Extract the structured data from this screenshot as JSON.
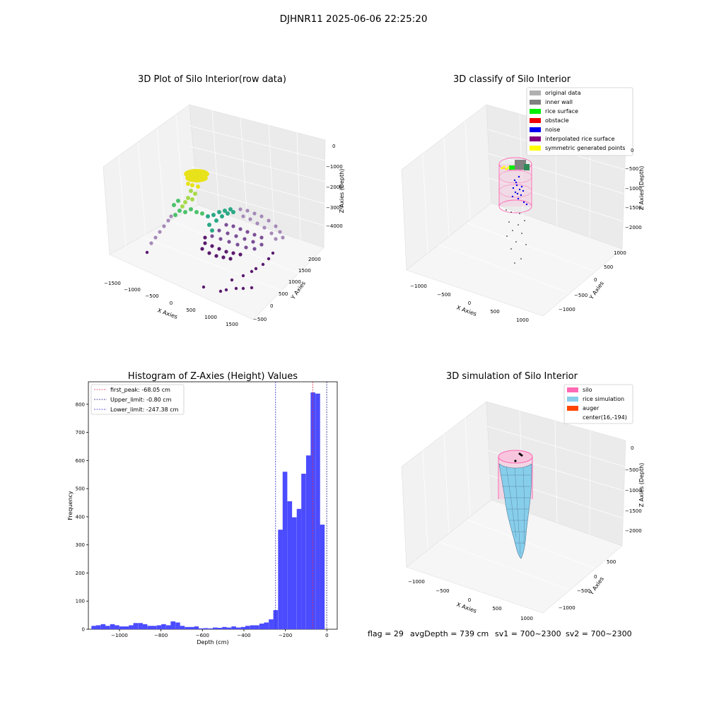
{
  "figure": {
    "suptitle": "DJHNR11 2025-06-06 22:25:20",
    "footer": {
      "flag": "flag = 29",
      "avg_depth": "avgDepth = 739 cm",
      "sv1": "sv1 = 700~2300",
      "sv2": "sv2 = 700~2300"
    }
  },
  "chart_data": [
    {
      "type": "scatter",
      "projection": "3d",
      "title": "3D Plot of Silo Interior(row data)",
      "xlabel": "X Axies",
      "ylabel": "Y Axies",
      "zlabel": "Z Axies (Depth)",
      "x_ticks": [
        "−1500",
        "−1000",
        "−500",
        "0",
        "500",
        "1000",
        "1500"
      ],
      "y_ticks": [
        "−500",
        "0",
        "500",
        "1000",
        "1500",
        "2000"
      ],
      "z_ticks": [
        "0",
        "−1000",
        "−2000",
        "−3000",
        "−4000"
      ],
      "colormap": "viridis (by height)",
      "grid": true
    },
    {
      "type": "scatter",
      "projection": "3d",
      "title": "3D classify of Silo Interior",
      "xlabel": "X Axies",
      "ylabel": "Y Axies",
      "zlabel": "Z Axies (Depth)",
      "x_ticks": [
        "−1000",
        "−500",
        "0",
        "500",
        "1000"
      ],
      "y_ticks": [
        "−1000",
        "−500",
        "0",
        "500",
        "1000"
      ],
      "z_ticks": [
        "0",
        "−500",
        "−1000",
        "−1500",
        "−2000"
      ],
      "legend_placement": "top-right",
      "legend": [
        {
          "name": "original data",
          "color": "#b0b0b0"
        },
        {
          "name": "inner wall",
          "color": "#808080"
        },
        {
          "name": "rice surface",
          "color": "#00ee00"
        },
        {
          "name": "obstacle",
          "color": "#ee0000"
        },
        {
          "name": "noise",
          "color": "#0000ee"
        },
        {
          "name": "interpolated rice surface",
          "color": "#800080"
        },
        {
          "name": "symmetric generated points",
          "color": "#ffff00"
        }
      ],
      "grid": true
    },
    {
      "type": "histogram",
      "title": "Histogram of Z-Axies (Height) Values",
      "xlabel": "Depth (cm)",
      "ylabel": "Frequency",
      "xlim": [
        -1150,
        50
      ],
      "ylim": [
        0,
        880
      ],
      "x_ticks": [
        -1000,
        -800,
        -600,
        -400,
        -200,
        0
      ],
      "y_ticks": [
        0,
        100,
        200,
        300,
        400,
        500,
        600,
        700,
        800
      ],
      "bar_color": "#4b4bff",
      "bin_width": 22.5,
      "bins": [
        {
          "x": -1124,
          "value": 12
        },
        {
          "x": -1102,
          "value": 14
        },
        {
          "x": -1079,
          "value": 18
        },
        {
          "x": -1057,
          "value": 12
        },
        {
          "x": -1034,
          "value": 18
        },
        {
          "x": -1012,
          "value": 14
        },
        {
          "x": -989,
          "value": 10
        },
        {
          "x": -967,
          "value": 10
        },
        {
          "x": -944,
          "value": 14
        },
        {
          "x": -922,
          "value": 22
        },
        {
          "x": -899,
          "value": 22
        },
        {
          "x": -877,
          "value": 18
        },
        {
          "x": -854,
          "value": 12
        },
        {
          "x": -832,
          "value": 12
        },
        {
          "x": -809,
          "value": 14
        },
        {
          "x": -787,
          "value": 18
        },
        {
          "x": -764,
          "value": 14
        },
        {
          "x": -742,
          "value": 28
        },
        {
          "x": -719,
          "value": 24
        },
        {
          "x": -697,
          "value": 12
        },
        {
          "x": -674,
          "value": 8
        },
        {
          "x": -652,
          "value": 8
        },
        {
          "x": -629,
          "value": 10
        },
        {
          "x": -607,
          "value": 3
        },
        {
          "x": -584,
          "value": 4
        },
        {
          "x": -562,
          "value": 3
        },
        {
          "x": -539,
          "value": 6
        },
        {
          "x": -517,
          "value": 5
        },
        {
          "x": -494,
          "value": 8
        },
        {
          "x": -472,
          "value": 6
        },
        {
          "x": -449,
          "value": 10
        },
        {
          "x": -427,
          "value": 6
        },
        {
          "x": -404,
          "value": 8
        },
        {
          "x": -382,
          "value": 12
        },
        {
          "x": -359,
          "value": 14
        },
        {
          "x": -337,
          "value": 14
        },
        {
          "x": -314,
          "value": 20
        },
        {
          "x": -292,
          "value": 24
        },
        {
          "x": -269,
          "value": 35
        },
        {
          "x": -247,
          "value": 68
        },
        {
          "x": -224,
          "value": 354
        },
        {
          "x": -202,
          "value": 560
        },
        {
          "x": -179,
          "value": 455
        },
        {
          "x": -157,
          "value": 398
        },
        {
          "x": -134,
          "value": 428
        },
        {
          "x": -112,
          "value": 553
        },
        {
          "x": -89,
          "value": 618
        },
        {
          "x": -67,
          "value": 842
        },
        {
          "x": -44,
          "value": 838
        },
        {
          "x": -22,
          "value": 372
        }
      ],
      "lines": [
        {
          "label": "first_peak: -68.05 cm",
          "x": -68.05,
          "color": "#e0304a"
        },
        {
          "label": "Upper_limit: -0.80 cm",
          "x": -0.8,
          "color": "#1a1a80"
        },
        {
          "label": "Lower_limit: -247.38 cm",
          "x": -247.38,
          "color": "#2a2acc"
        }
      ],
      "legend_placement": "top-left"
    },
    {
      "type": "surface",
      "projection": "3d",
      "title": "3D simulation of Silo Interior",
      "xlabel": "X Axies",
      "ylabel": "Y Axies",
      "zlabel": "Z Axies (Depth)",
      "x_ticks": [
        "−1000",
        "−500",
        "0",
        "500",
        "1000"
      ],
      "y_ticks": [
        "−1000",
        "−500",
        "0",
        "500"
      ],
      "z_ticks": [
        "0",
        "−500",
        "−1000",
        "−1500",
        "−2000"
      ],
      "legend_placement": "top-right",
      "legend": [
        {
          "name": "silo",
          "color": "#ff69b4"
        },
        {
          "name": "rice simulation",
          "color": "#87ceeb"
        },
        {
          "name": "auger",
          "color": "#ff4500"
        },
        {
          "name": "center(16,-194)",
          "color": "#000000"
        }
      ],
      "grid": true
    }
  ]
}
